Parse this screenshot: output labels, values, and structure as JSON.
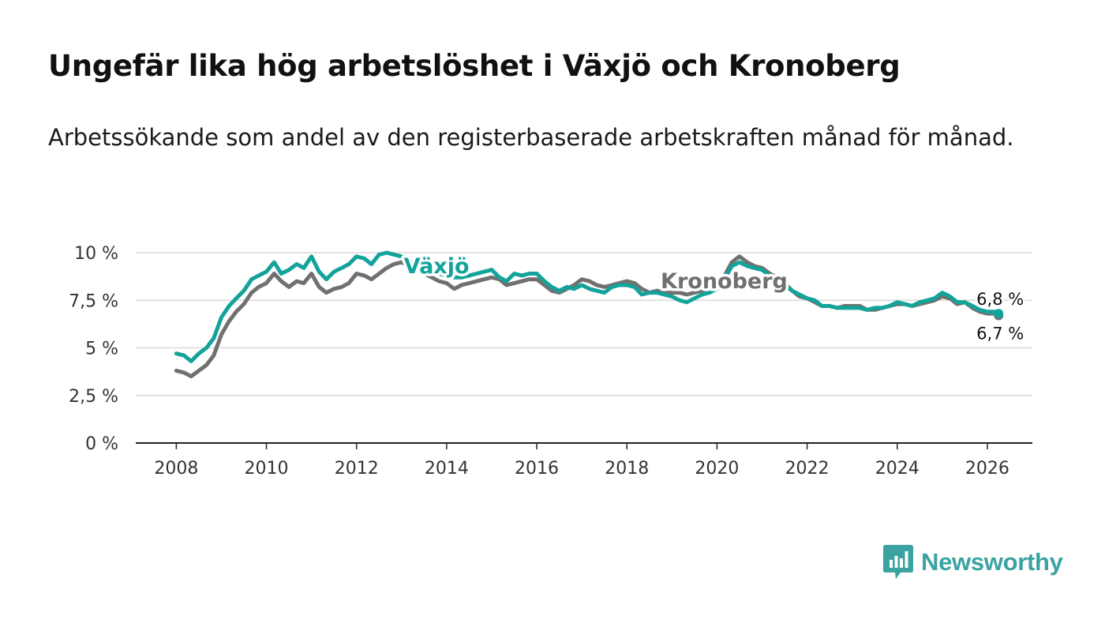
{
  "header": {
    "title": "Ungefär lika hög arbetslöshet i Växjö och Kronoberg",
    "subtitle": "Arbetssökande som andel av den registerbaserade arbetskraften månad för månad."
  },
  "brand": {
    "name": "Newsworthy",
    "icon": "newsworthy-logo-icon",
    "color": "#3aa3a1"
  },
  "chart_data": {
    "type": "line",
    "title": "Ungefär lika hög arbetslöshet i Växjö och Kronoberg",
    "xlabel": "",
    "ylabel": "",
    "xlim": [
      2007.1,
      2027.0
    ],
    "ylim": [
      0,
      10
    ],
    "x_ticks": [
      2008,
      2010,
      2012,
      2014,
      2016,
      2018,
      2020,
      2022,
      2024,
      2026
    ],
    "x_tick_labels": [
      "2008",
      "2010",
      "2012",
      "2014",
      "2016",
      "2018",
      "2020",
      "2022",
      "2024",
      "2026"
    ],
    "y_ticks": [
      0,
      2.5,
      5,
      7.5,
      10
    ],
    "y_tick_labels": [
      "0 %",
      "2,5 %",
      "5 %",
      "7,5 %",
      "10 %"
    ],
    "grid": true,
    "legend": "inline labels",
    "series": [
      {
        "name": "Växjö",
        "color": "#13a39a",
        "points": [
          [
            2008.0,
            4.7
          ],
          [
            2008.17,
            4.6
          ],
          [
            2008.33,
            4.3
          ],
          [
            2008.5,
            4.7
          ],
          [
            2008.67,
            5.0
          ],
          [
            2008.83,
            5.5
          ],
          [
            2009.0,
            6.6
          ],
          [
            2009.17,
            7.2
          ],
          [
            2009.33,
            7.6
          ],
          [
            2009.5,
            8.0
          ],
          [
            2009.67,
            8.6
          ],
          [
            2009.83,
            8.8
          ],
          [
            2010.0,
            9.0
          ],
          [
            2010.17,
            9.5
          ],
          [
            2010.33,
            8.9
          ],
          [
            2010.5,
            9.1
          ],
          [
            2010.67,
            9.4
          ],
          [
            2010.83,
            9.2
          ],
          [
            2011.0,
            9.8
          ],
          [
            2011.17,
            9.0
          ],
          [
            2011.33,
            8.6
          ],
          [
            2011.5,
            9.0
          ],
          [
            2011.67,
            9.2
          ],
          [
            2011.83,
            9.4
          ],
          [
            2012.0,
            9.8
          ],
          [
            2012.17,
            9.7
          ],
          [
            2012.33,
            9.4
          ],
          [
            2012.5,
            9.9
          ],
          [
            2012.67,
            10.0
          ],
          [
            2012.83,
            9.9
          ],
          [
            2013.0,
            9.8
          ],
          [
            2013.17,
            9.6
          ],
          [
            2013.33,
            9.3
          ],
          [
            2013.5,
            9.0
          ],
          [
            2013.67,
            8.9
          ],
          [
            2013.83,
            8.9
          ],
          [
            2014.0,
            8.8
          ],
          [
            2014.17,
            8.7
          ],
          [
            2014.33,
            8.7
          ],
          [
            2014.5,
            8.8
          ],
          [
            2014.67,
            8.9
          ],
          [
            2014.83,
            9.0
          ],
          [
            2015.0,
            9.1
          ],
          [
            2015.17,
            8.7
          ],
          [
            2015.33,
            8.5
          ],
          [
            2015.5,
            8.9
          ],
          [
            2015.67,
            8.8
          ],
          [
            2015.83,
            8.9
          ],
          [
            2016.0,
            8.9
          ],
          [
            2016.17,
            8.5
          ],
          [
            2016.33,
            8.2
          ],
          [
            2016.5,
            8.0
          ],
          [
            2016.67,
            8.2
          ],
          [
            2016.83,
            8.1
          ],
          [
            2017.0,
            8.3
          ],
          [
            2017.17,
            8.1
          ],
          [
            2017.33,
            8.0
          ],
          [
            2017.5,
            7.9
          ],
          [
            2017.67,
            8.2
          ],
          [
            2017.83,
            8.3
          ],
          [
            2018.0,
            8.3
          ],
          [
            2018.17,
            8.2
          ],
          [
            2018.33,
            7.8
          ],
          [
            2018.5,
            7.9
          ],
          [
            2018.67,
            7.9
          ],
          [
            2018.83,
            7.8
          ],
          [
            2019.0,
            7.7
          ],
          [
            2019.17,
            7.5
          ],
          [
            2019.33,
            7.4
          ],
          [
            2019.5,
            7.6
          ],
          [
            2019.67,
            7.8
          ],
          [
            2019.83,
            7.9
          ],
          [
            2020.0,
            8.1
          ],
          [
            2020.17,
            8.6
          ],
          [
            2020.33,
            9.3
          ],
          [
            2020.5,
            9.5
          ],
          [
            2020.67,
            9.3
          ],
          [
            2020.83,
            9.2
          ],
          [
            2021.0,
            9.1
          ],
          [
            2021.17,
            8.8
          ],
          [
            2021.33,
            8.6
          ],
          [
            2021.5,
            8.3
          ],
          [
            2021.67,
            8.0
          ],
          [
            2021.83,
            7.8
          ],
          [
            2022.0,
            7.6
          ],
          [
            2022.17,
            7.5
          ],
          [
            2022.33,
            7.2
          ],
          [
            2022.5,
            7.2
          ],
          [
            2022.67,
            7.1
          ],
          [
            2022.83,
            7.1
          ],
          [
            2023.0,
            7.1
          ],
          [
            2023.17,
            7.1
          ],
          [
            2023.33,
            7.0
          ],
          [
            2023.5,
            7.1
          ],
          [
            2023.67,
            7.1
          ],
          [
            2023.83,
            7.2
          ],
          [
            2024.0,
            7.4
          ],
          [
            2024.17,
            7.3
          ],
          [
            2024.33,
            7.2
          ],
          [
            2024.5,
            7.4
          ],
          [
            2024.67,
            7.5
          ],
          [
            2024.83,
            7.6
          ],
          [
            2025.0,
            7.9
          ],
          [
            2025.17,
            7.7
          ],
          [
            2025.33,
            7.4
          ],
          [
            2025.5,
            7.4
          ],
          [
            2025.67,
            7.2
          ],
          [
            2025.83,
            7.0
          ],
          [
            2026.0,
            6.9
          ],
          [
            2026.17,
            6.9
          ],
          [
            2026.25,
            6.8
          ]
        ]
      },
      {
        "name": "Kronoberg",
        "color": "#707070",
        "points": [
          [
            2008.0,
            3.8
          ],
          [
            2008.17,
            3.7
          ],
          [
            2008.33,
            3.5
          ],
          [
            2008.5,
            3.8
          ],
          [
            2008.67,
            4.1
          ],
          [
            2008.83,
            4.6
          ],
          [
            2009.0,
            5.7
          ],
          [
            2009.17,
            6.4
          ],
          [
            2009.33,
            6.9
          ],
          [
            2009.5,
            7.3
          ],
          [
            2009.67,
            7.9
          ],
          [
            2009.83,
            8.2
          ],
          [
            2010.0,
            8.4
          ],
          [
            2010.17,
            8.9
          ],
          [
            2010.33,
            8.5
          ],
          [
            2010.5,
            8.2
          ],
          [
            2010.67,
            8.5
          ],
          [
            2010.83,
            8.4
          ],
          [
            2011.0,
            8.9
          ],
          [
            2011.17,
            8.2
          ],
          [
            2011.33,
            7.9
          ],
          [
            2011.5,
            8.1
          ],
          [
            2011.67,
            8.2
          ],
          [
            2011.83,
            8.4
          ],
          [
            2012.0,
            8.9
          ],
          [
            2012.17,
            8.8
          ],
          [
            2012.33,
            8.6
          ],
          [
            2012.5,
            8.9
          ],
          [
            2012.67,
            9.2
          ],
          [
            2012.83,
            9.4
          ],
          [
            2013.0,
            9.5
          ],
          [
            2013.17,
            9.3
          ],
          [
            2013.33,
            9.2
          ],
          [
            2013.5,
            8.9
          ],
          [
            2013.67,
            8.7
          ],
          [
            2013.83,
            8.5
          ],
          [
            2014.0,
            8.4
          ],
          [
            2014.17,
            8.1
          ],
          [
            2014.33,
            8.3
          ],
          [
            2014.5,
            8.4
          ],
          [
            2014.67,
            8.5
          ],
          [
            2014.83,
            8.6
          ],
          [
            2015.0,
            8.7
          ],
          [
            2015.17,
            8.6
          ],
          [
            2015.33,
            8.3
          ],
          [
            2015.5,
            8.4
          ],
          [
            2015.67,
            8.5
          ],
          [
            2015.83,
            8.6
          ],
          [
            2016.0,
            8.6
          ],
          [
            2016.17,
            8.3
          ],
          [
            2016.33,
            8.0
          ],
          [
            2016.5,
            7.9
          ],
          [
            2016.67,
            8.1
          ],
          [
            2016.83,
            8.3
          ],
          [
            2017.0,
            8.6
          ],
          [
            2017.17,
            8.5
          ],
          [
            2017.33,
            8.3
          ],
          [
            2017.5,
            8.2
          ],
          [
            2017.67,
            8.3
          ],
          [
            2017.83,
            8.4
          ],
          [
            2018.0,
            8.5
          ],
          [
            2018.17,
            8.4
          ],
          [
            2018.33,
            8.1
          ],
          [
            2018.5,
            7.9
          ],
          [
            2018.67,
            8.0
          ],
          [
            2018.83,
            7.9
          ],
          [
            2019.0,
            7.9
          ],
          [
            2019.17,
            7.9
          ],
          [
            2019.33,
            7.8
          ],
          [
            2019.5,
            7.9
          ],
          [
            2019.67,
            8.0
          ],
          [
            2019.83,
            8.1
          ],
          [
            2020.0,
            8.3
          ],
          [
            2020.17,
            8.8
          ],
          [
            2020.33,
            9.5
          ],
          [
            2020.5,
            9.8
          ],
          [
            2020.67,
            9.5
          ],
          [
            2020.83,
            9.3
          ],
          [
            2021.0,
            9.2
          ],
          [
            2021.17,
            8.9
          ],
          [
            2021.33,
            8.7
          ],
          [
            2021.5,
            8.4
          ],
          [
            2021.67,
            8.0
          ],
          [
            2021.83,
            7.7
          ],
          [
            2022.0,
            7.6
          ],
          [
            2022.17,
            7.4
          ],
          [
            2022.33,
            7.2
          ],
          [
            2022.5,
            7.2
          ],
          [
            2022.67,
            7.1
          ],
          [
            2022.83,
            7.2
          ],
          [
            2023.0,
            7.2
          ],
          [
            2023.17,
            7.2
          ],
          [
            2023.33,
            7.0
          ],
          [
            2023.5,
            7.0
          ],
          [
            2023.67,
            7.1
          ],
          [
            2023.83,
            7.2
          ],
          [
            2024.0,
            7.3
          ],
          [
            2024.17,
            7.3
          ],
          [
            2024.33,
            7.2
          ],
          [
            2024.5,
            7.3
          ],
          [
            2024.67,
            7.4
          ],
          [
            2024.83,
            7.5
          ],
          [
            2025.0,
            7.7
          ],
          [
            2025.17,
            7.6
          ],
          [
            2025.33,
            7.3
          ],
          [
            2025.5,
            7.4
          ],
          [
            2025.67,
            7.1
          ],
          [
            2025.83,
            6.9
          ],
          [
            2026.0,
            6.8
          ],
          [
            2026.17,
            6.8
          ],
          [
            2026.25,
            6.7
          ]
        ]
      }
    ],
    "series_labels": [
      {
        "series": "Växjö",
        "text": "Växjö",
        "x": 2013.05,
        "y": 9.3
      },
      {
        "series": "Kronoberg",
        "text": "Kronoberg",
        "x": 2018.75,
        "y": 8.5
      }
    ],
    "end_labels": [
      {
        "series": "Växjö",
        "text": "6,8 %",
        "value": 6.8
      },
      {
        "series": "Kronoberg",
        "text": "6,7 %",
        "value": 6.7
      }
    ]
  }
}
